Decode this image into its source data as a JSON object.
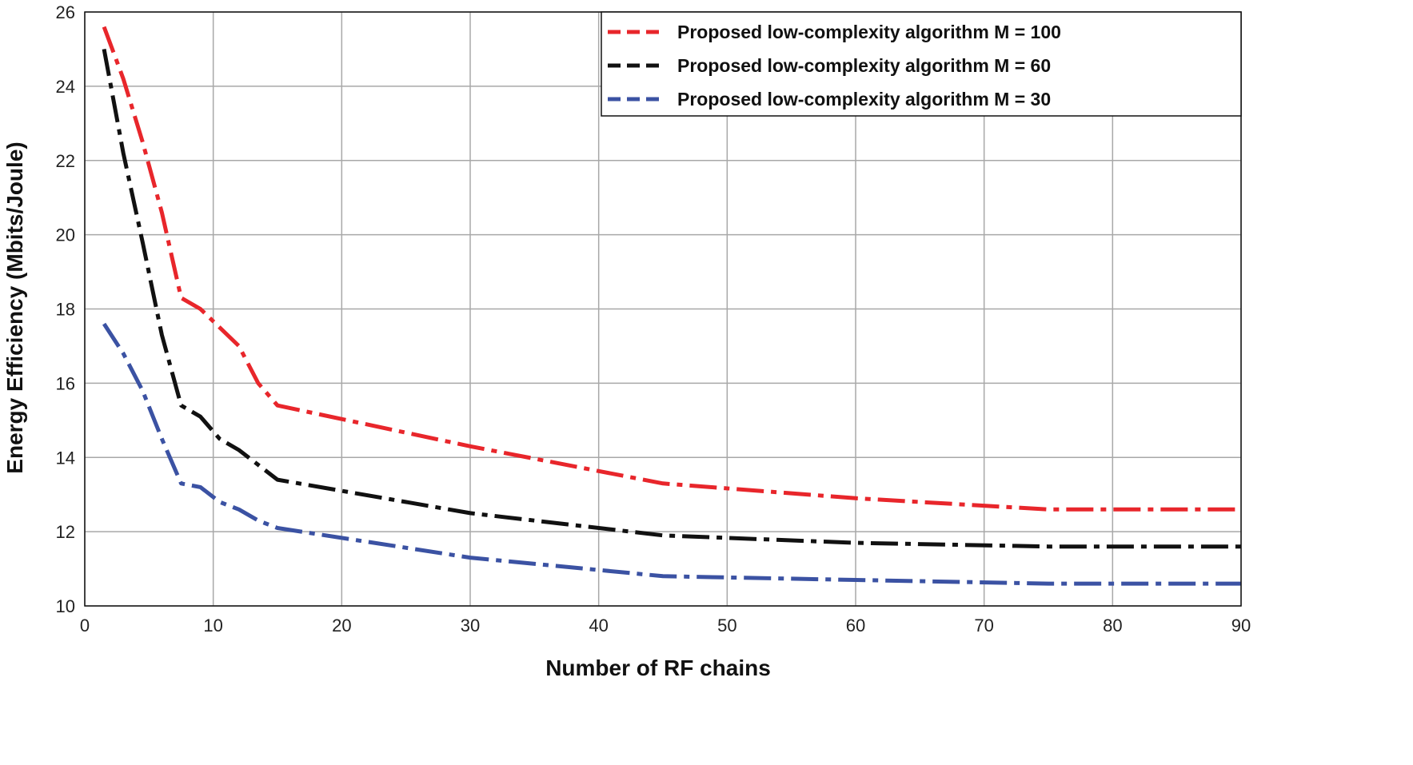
{
  "chart_data": {
    "type": "line",
    "title": "",
    "xlabel": "Number of RF chains",
    "ylabel": "Energy Efficiency (Mbits/Joule)",
    "xlim": [
      0,
      90
    ],
    "ylim": [
      10,
      26
    ],
    "xticks": [
      0,
      10,
      20,
      30,
      40,
      50,
      60,
      70,
      80,
      90
    ],
    "yticks": [
      10,
      12,
      14,
      16,
      18,
      20,
      22,
      24,
      26
    ],
    "grid": true,
    "legend_position": "top-right",
    "series": [
      {
        "name": "Proposed low-complexity algorithm M = 100",
        "color": "#e8262b",
        "x": [
          1.5,
          3,
          4.5,
          6,
          7.5,
          9,
          10.5,
          12,
          13.5,
          15,
          30,
          45,
          60,
          75,
          90
        ],
        "y": [
          25.6,
          24.2,
          22.5,
          20.6,
          18.3,
          18.0,
          17.5,
          17.0,
          16.0,
          15.4,
          14.3,
          13.3,
          12.9,
          12.6,
          12.6
        ]
      },
      {
        "name": "Proposed low-complexity algorithm M = 60",
        "color": "#111111",
        "x": [
          1.5,
          3,
          4.5,
          6,
          7.5,
          9,
          10.5,
          12,
          13.5,
          15,
          30,
          45,
          60,
          75,
          90
        ],
        "y": [
          25.0,
          22.2,
          19.8,
          17.3,
          15.4,
          15.1,
          14.5,
          14.2,
          13.8,
          13.4,
          12.5,
          11.9,
          11.7,
          11.6,
          11.6
        ]
      },
      {
        "name": "Proposed low-complexity algorithm M = 30",
        "color": "#3b52a3",
        "x": [
          1.5,
          3,
          4.5,
          6,
          7.5,
          9,
          10.5,
          12,
          13.5,
          15,
          30,
          45,
          60,
          75,
          90
        ],
        "y": [
          17.6,
          16.8,
          15.8,
          14.5,
          13.3,
          13.2,
          12.8,
          12.6,
          12.3,
          12.1,
          11.3,
          10.8,
          10.7,
          10.6,
          10.6
        ]
      }
    ]
  }
}
